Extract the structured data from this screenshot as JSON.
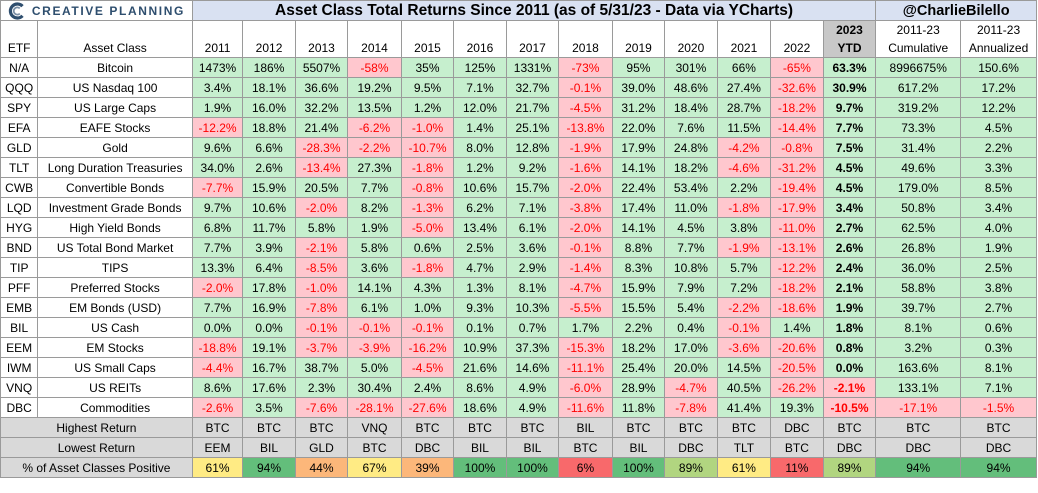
{
  "brand": {
    "logo_text": "CREATIVE PLANNING"
  },
  "title": "Asset Class Total Returns Since 2011 (as of 5/31/23 - Data via YCharts)",
  "handle": "@CharlieBilello",
  "header": {
    "etf": "ETF",
    "asset_class": "Asset Class",
    "years": [
      "2011",
      "2012",
      "2013",
      "2014",
      "2015",
      "2016",
      "2017",
      "2018",
      "2019",
      "2020",
      "2021",
      "2022"
    ],
    "ytd_line1": "2023",
    "ytd_line2": "YTD",
    "cum_line1": "2011-23",
    "cum_line2": "Cumulative",
    "ann_line1": "2011-23",
    "ann_line2": "Annualized"
  },
  "colors": {
    "positive": "#c6efce",
    "negative_bg": "#ffc7ce",
    "negative_text": "#ff0000",
    "pct_positive_scale": [
      "#f8696b",
      "#fcb77a",
      "#ffeb84",
      "#b1d580",
      "#63be7b"
    ]
  },
  "rows": [
    {
      "etf": "N/A",
      "asset": "Bitcoin",
      "values": [
        "1473%",
        "186%",
        "5507%",
        "-58%",
        "35%",
        "125%",
        "1331%",
        "-73%",
        "95%",
        "301%",
        "66%",
        "-65%",
        "63.3%",
        "8996675%",
        "150.6%"
      ]
    },
    {
      "etf": "QQQ",
      "asset": "US Nasdaq 100",
      "values": [
        "3.4%",
        "18.1%",
        "36.6%",
        "19.2%",
        "9.5%",
        "7.1%",
        "32.7%",
        "-0.1%",
        "39.0%",
        "48.6%",
        "27.4%",
        "-32.6%",
        "30.9%",
        "617.2%",
        "17.2%"
      ]
    },
    {
      "etf": "SPY",
      "asset": "US Large Caps",
      "values": [
        "1.9%",
        "16.0%",
        "32.2%",
        "13.5%",
        "1.2%",
        "12.0%",
        "21.7%",
        "-4.5%",
        "31.2%",
        "18.4%",
        "28.7%",
        "-18.2%",
        "9.7%",
        "319.2%",
        "12.2%"
      ]
    },
    {
      "etf": "EFA",
      "asset": "EAFE Stocks",
      "values": [
        "-12.2%",
        "18.8%",
        "21.4%",
        "-6.2%",
        "-1.0%",
        "1.4%",
        "25.1%",
        "-13.8%",
        "22.0%",
        "7.6%",
        "11.5%",
        "-14.4%",
        "7.7%",
        "73.3%",
        "4.5%"
      ]
    },
    {
      "etf": "GLD",
      "asset": "Gold",
      "values": [
        "9.6%",
        "6.6%",
        "-28.3%",
        "-2.2%",
        "-10.7%",
        "8.0%",
        "12.8%",
        "-1.9%",
        "17.9%",
        "24.8%",
        "-4.2%",
        "-0.8%",
        "7.5%",
        "31.4%",
        "2.2%"
      ]
    },
    {
      "etf": "TLT",
      "asset": "Long Duration Treasuries",
      "values": [
        "34.0%",
        "2.6%",
        "-13.4%",
        "27.3%",
        "-1.8%",
        "1.2%",
        "9.2%",
        "-1.6%",
        "14.1%",
        "18.2%",
        "-4.6%",
        "-31.2%",
        "4.5%",
        "49.6%",
        "3.3%"
      ]
    },
    {
      "etf": "CWB",
      "asset": "Convertible Bonds",
      "values": [
        "-7.7%",
        "15.9%",
        "20.5%",
        "7.7%",
        "-0.8%",
        "10.6%",
        "15.7%",
        "-2.0%",
        "22.4%",
        "53.4%",
        "2.2%",
        "-19.4%",
        "4.5%",
        "179.0%",
        "8.5%"
      ]
    },
    {
      "etf": "LQD",
      "asset": "Investment Grade Bonds",
      "values": [
        "9.7%",
        "10.6%",
        "-2.0%",
        "8.2%",
        "-1.3%",
        "6.2%",
        "7.1%",
        "-3.8%",
        "17.4%",
        "11.0%",
        "-1.8%",
        "-17.9%",
        "3.4%",
        "50.8%",
        "3.4%"
      ]
    },
    {
      "etf": "HYG",
      "asset": "High Yield Bonds",
      "values": [
        "6.8%",
        "11.7%",
        "5.8%",
        "1.9%",
        "-5.0%",
        "13.4%",
        "6.1%",
        "-2.0%",
        "14.1%",
        "4.5%",
        "3.8%",
        "-11.0%",
        "2.7%",
        "62.5%",
        "4.0%"
      ]
    },
    {
      "etf": "BND",
      "asset": "US Total Bond Market",
      "values": [
        "7.7%",
        "3.9%",
        "-2.1%",
        "5.8%",
        "0.6%",
        "2.5%",
        "3.6%",
        "-0.1%",
        "8.8%",
        "7.7%",
        "-1.9%",
        "-13.1%",
        "2.6%",
        "26.8%",
        "1.9%"
      ]
    },
    {
      "etf": "TIP",
      "asset": "TIPS",
      "values": [
        "13.3%",
        "6.4%",
        "-8.5%",
        "3.6%",
        "-1.8%",
        "4.7%",
        "2.9%",
        "-1.4%",
        "8.3%",
        "10.8%",
        "5.7%",
        "-12.2%",
        "2.4%",
        "36.0%",
        "2.5%"
      ]
    },
    {
      "etf": "PFF",
      "asset": "Preferred Stocks",
      "values": [
        "-2.0%",
        "17.8%",
        "-1.0%",
        "14.1%",
        "4.3%",
        "1.3%",
        "8.1%",
        "-4.7%",
        "15.9%",
        "7.9%",
        "7.2%",
        "-18.2%",
        "2.1%",
        "58.8%",
        "3.8%"
      ]
    },
    {
      "etf": "EMB",
      "asset": "EM Bonds (USD)",
      "values": [
        "7.7%",
        "16.9%",
        "-7.8%",
        "6.1%",
        "1.0%",
        "9.3%",
        "10.3%",
        "-5.5%",
        "15.5%",
        "5.4%",
        "-2.2%",
        "-18.6%",
        "1.9%",
        "39.7%",
        "2.7%"
      ]
    },
    {
      "etf": "BIL",
      "asset": "US Cash",
      "values": [
        "0.0%",
        "0.0%",
        "-0.1%",
        "-0.1%",
        "-0.1%",
        "0.1%",
        "0.7%",
        "1.7%",
        "2.2%",
        "0.4%",
        "-0.1%",
        "1.4%",
        "1.8%",
        "8.1%",
        "0.6%"
      ]
    },
    {
      "etf": "EEM",
      "asset": "EM Stocks",
      "values": [
        "-18.8%",
        "19.1%",
        "-3.7%",
        "-3.9%",
        "-16.2%",
        "10.9%",
        "37.3%",
        "-15.3%",
        "18.2%",
        "17.0%",
        "-3.6%",
        "-20.6%",
        "0.8%",
        "3.2%",
        "0.3%"
      ]
    },
    {
      "etf": "IWM",
      "asset": "US Small Caps",
      "values": [
        "-4.4%",
        "16.7%",
        "38.7%",
        "5.0%",
        "-4.5%",
        "21.6%",
        "14.6%",
        "-11.1%",
        "25.4%",
        "20.0%",
        "14.5%",
        "-20.5%",
        "0.0%",
        "163.6%",
        "8.1%"
      ]
    },
    {
      "etf": "VNQ",
      "asset": "US REITs",
      "values": [
        "8.6%",
        "17.6%",
        "2.3%",
        "30.4%",
        "2.4%",
        "8.6%",
        "4.9%",
        "-6.0%",
        "28.9%",
        "-4.7%",
        "40.5%",
        "-26.2%",
        "-2.1%",
        "133.1%",
        "7.1%"
      ]
    },
    {
      "etf": "DBC",
      "asset": "Commodities",
      "values": [
        "-2.6%",
        "3.5%",
        "-7.6%",
        "-28.1%",
        "-27.6%",
        "18.6%",
        "4.9%",
        "-11.6%",
        "11.8%",
        "-7.8%",
        "41.4%",
        "19.3%",
        "-10.5%",
        "-17.1%",
        "-1.5%"
      ]
    }
  ],
  "summary": {
    "highest_label": "Highest Return",
    "highest": [
      "BTC",
      "BTC",
      "BTC",
      "VNQ",
      "BTC",
      "BTC",
      "BTC",
      "BIL",
      "BTC",
      "BTC",
      "BTC",
      "DBC",
      "BTC",
      "BTC",
      "BTC"
    ],
    "lowest_label": "Lowest Return",
    "lowest": [
      "EEM",
      "BIL",
      "GLD",
      "BTC",
      "DBC",
      "BIL",
      "BIL",
      "BTC",
      "BIL",
      "DBC",
      "TLT",
      "BTC",
      "DBC",
      "DBC",
      "DBC"
    ],
    "positive_label": "% of Asset Classes Positive",
    "positive": [
      "61%",
      "94%",
      "44%",
      "67%",
      "39%",
      "100%",
      "100%",
      "6%",
      "100%",
      "89%",
      "61%",
      "11%",
      "89%",
      "94%",
      "94%"
    ],
    "positive_pct": [
      61,
      94,
      44,
      67,
      39,
      100,
      100,
      6,
      100,
      89,
      61,
      11,
      89,
      94,
      94
    ]
  }
}
